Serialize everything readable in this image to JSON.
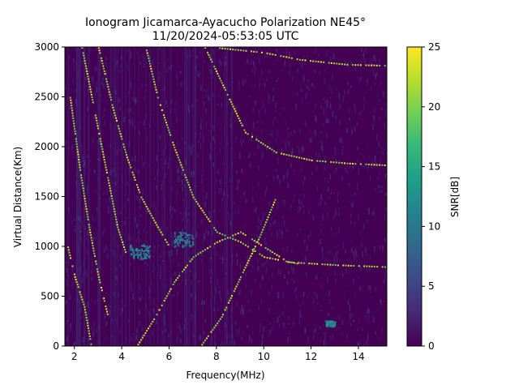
{
  "chart_data": {
    "type": "heatmap",
    "title": "Ionogram Jicamarca-Ayacucho Polarization NE45°",
    "subtitle": "11/20/2024-05:53:05 UTC",
    "xlabel": "Frequency(MHz)",
    "ylabel": "Virtual Distance(Km)",
    "xlim": [
      1.6,
      15.2
    ],
    "ylim": [
      0,
      3000
    ],
    "xticks": [
      2,
      4,
      6,
      8,
      10,
      12,
      14
    ],
    "yticks": [
      0,
      500,
      1000,
      1500,
      2000,
      2500,
      3000
    ],
    "colorbar": {
      "label": "SNR[dB]",
      "range": [
        0,
        25
      ],
      "ticks": [
        0,
        5,
        10,
        15,
        20,
        25
      ],
      "colormap": [
        "#440154",
        "#482878",
        "#3e4989",
        "#31688e",
        "#26828e",
        "#1f9e89",
        "#35b779",
        "#6ece58",
        "#b5de2b",
        "#fde725"
      ]
    },
    "background_color": "#440154",
    "traces": [
      {
        "name": "",
        "points": [
          [
            4.6,
            0
          ],
          [
            5.4,
            300
          ],
          [
            6.2,
            650
          ],
          [
            7.0,
            900
          ],
          [
            8.0,
            1050
          ],
          [
            9.0,
            1150
          ],
          [
            11.0,
            850
          ],
          [
            13.0,
            820
          ],
          [
            15.2,
            800
          ]
        ],
        "snr": 25
      },
      {
        "name": "",
        "points": [
          [
            7.3,
            0
          ],
          [
            8.2,
            300
          ],
          [
            9.0,
            700
          ],
          [
            9.8,
            1100
          ],
          [
            10.5,
            1500
          ]
        ],
        "snr": 25
      },
      {
        "name": "",
        "points": [
          [
            7.5,
            3000
          ],
          [
            8.3,
            2600
          ],
          [
            9.2,
            2150
          ],
          [
            10.5,
            1950
          ],
          [
            12.0,
            1870
          ],
          [
            13.5,
            1840
          ],
          [
            15.2,
            1820
          ]
        ],
        "snr": 25
      },
      {
        "name": "",
        "points": [
          [
            8.0,
            3000
          ],
          [
            10.0,
            2950
          ],
          [
            11.5,
            2880
          ],
          [
            13.5,
            2830
          ],
          [
            15.2,
            2820
          ]
        ],
        "snr": 25
      },
      {
        "name": "",
        "points": [
          [
            5.0,
            3000
          ],
          [
            5.5,
            2500
          ],
          [
            6.2,
            2000
          ],
          [
            7.0,
            1500
          ],
          [
            8.0,
            1150
          ],
          [
            9.0,
            1050
          ],
          [
            10.0,
            900
          ],
          [
            11.5,
            830
          ]
        ],
        "snr": 25
      },
      {
        "name": "",
        "points": [
          [
            3.0,
            3000
          ],
          [
            3.6,
            2400
          ],
          [
            4.2,
            1900
          ],
          [
            4.8,
            1500
          ],
          [
            5.5,
            1200
          ],
          [
            6.0,
            1000
          ]
        ],
        "snr": 25
      },
      {
        "name": "",
        "points": [
          [
            2.3,
            3000
          ],
          [
            2.8,
            2400
          ],
          [
            3.3,
            1800
          ],
          [
            3.8,
            1200
          ],
          [
            4.2,
            900
          ]
        ],
        "snr": 25
      },
      {
        "name": "",
        "points": [
          [
            1.8,
            2500
          ],
          [
            2.2,
            1800
          ],
          [
            2.6,
            1200
          ],
          [
            3.0,
            700
          ],
          [
            3.4,
            300
          ]
        ],
        "snr": 25
      },
      {
        "name": "",
        "points": [
          [
            1.7,
            1000
          ],
          [
            2.0,
            700
          ],
          [
            2.4,
            400
          ],
          [
            2.7,
            0
          ]
        ],
        "snr": 25
      }
    ],
    "noise_patches": [
      {
        "x": [
          4.3,
          5.2
        ],
        "y": [
          880,
          1020
        ],
        "snr": 12
      },
      {
        "x": [
          6.2,
          7.0
        ],
        "y": [
          1000,
          1150
        ],
        "snr": 11
      },
      {
        "x": [
          12.6,
          13.0
        ],
        "y": [
          200,
          260
        ],
        "snr": 13
      }
    ]
  }
}
